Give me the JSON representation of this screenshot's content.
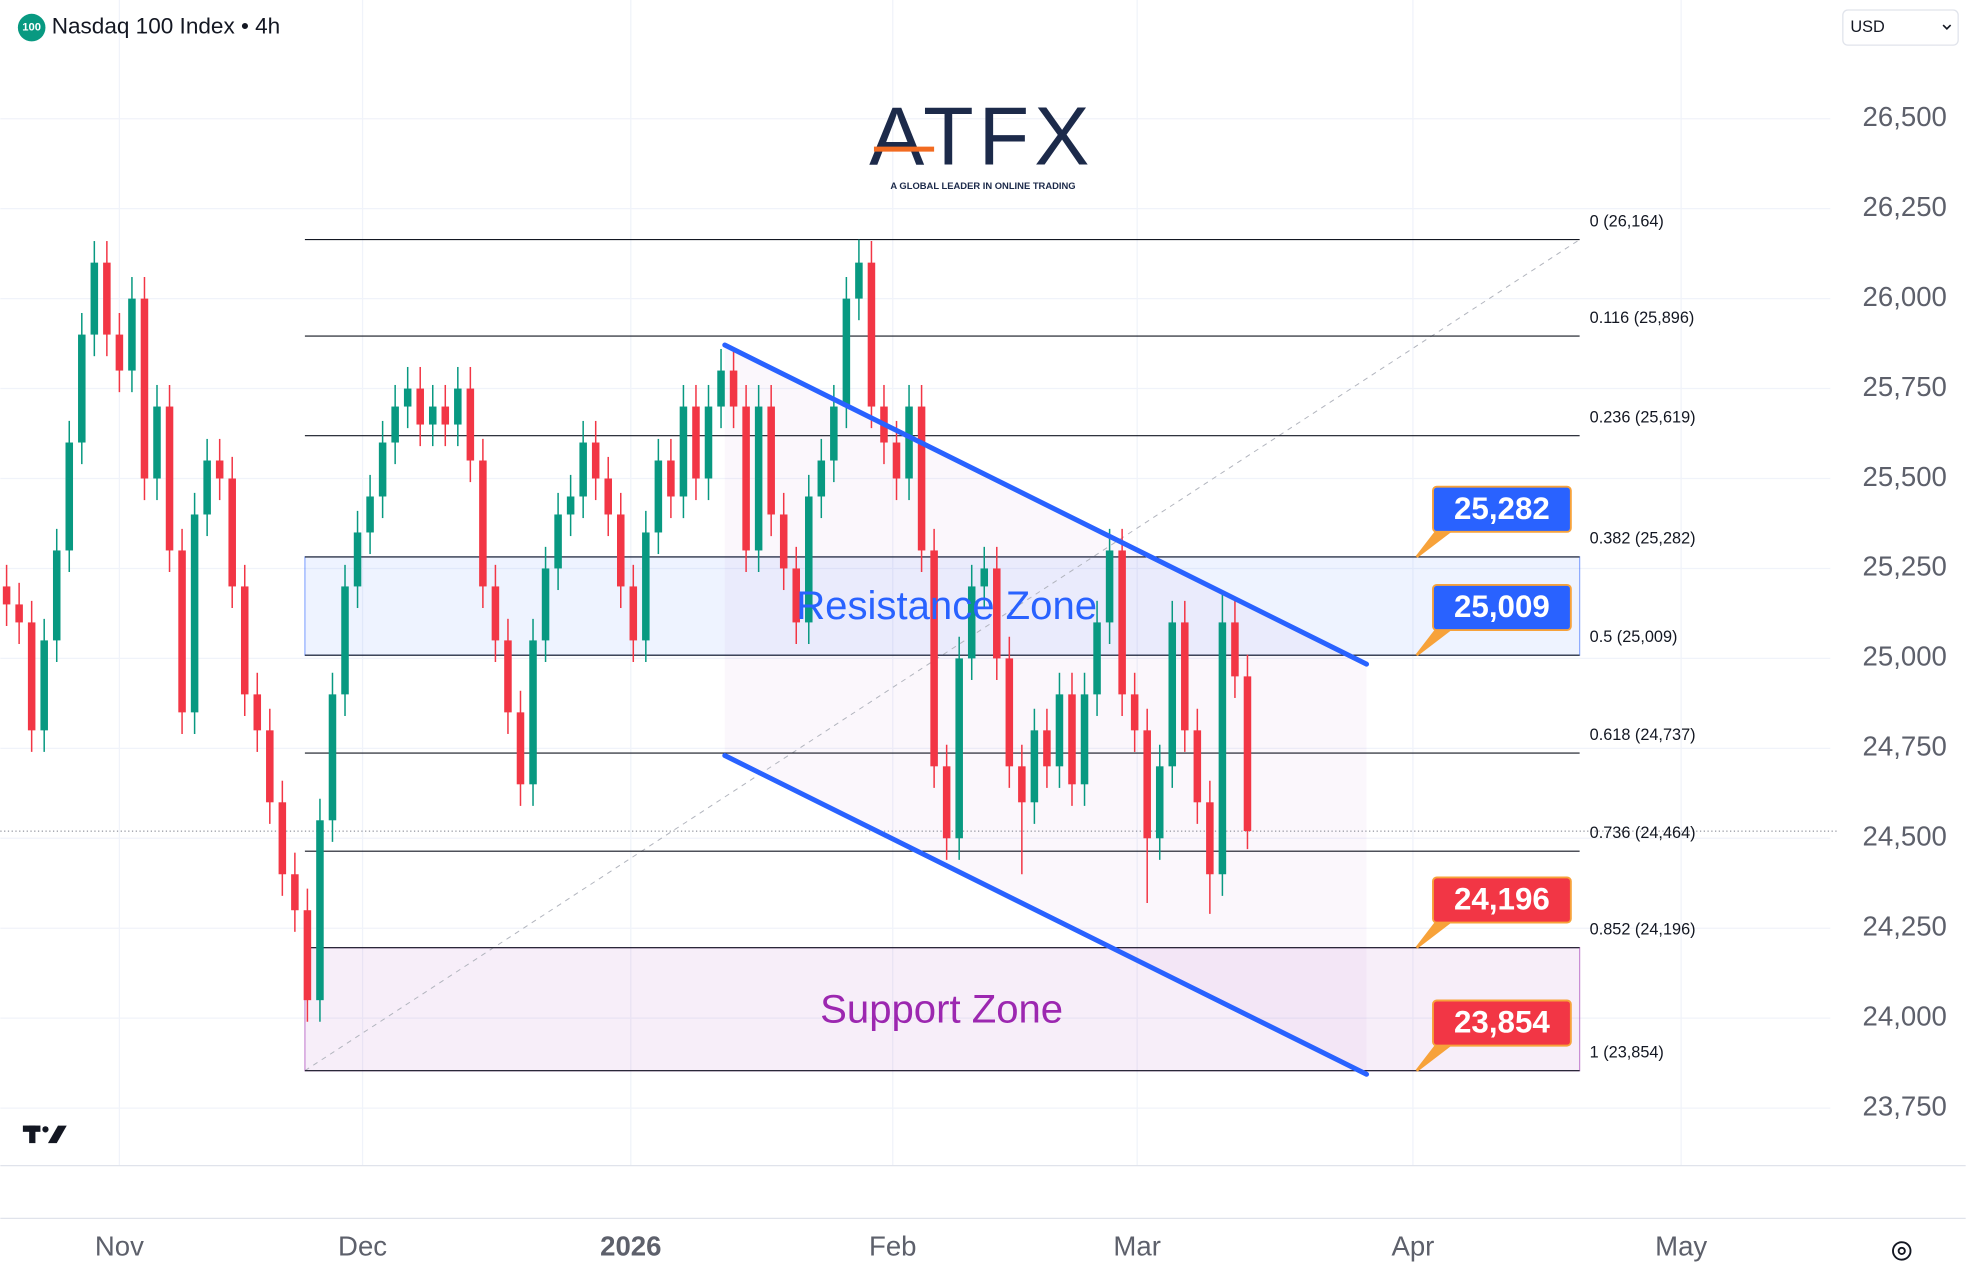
{
  "chart_data": {
    "type": "candlestick",
    "title": "Nasdaq 100 Index • 4h",
    "symbol_badge": "100",
    "currency": "USD",
    "logo": "ATFX",
    "logo_tagline": "A GLOBAL LEADER IN ONLINE TRADING",
    "up_color": "#089981",
    "down_color": "#f23645",
    "xlim": [
      -0.5,
      145.5
    ],
    "xticks": [
      {
        "value": 9,
        "label": "Nov"
      },
      {
        "value": 28.4,
        "label": "Dec"
      },
      {
        "value": 49.8,
        "label": "2026"
      },
      {
        "value": 70.7,
        "label": "Feb"
      },
      {
        "value": 90.2,
        "label": "Mar"
      },
      {
        "value": 112.2,
        "label": "Apr"
      },
      {
        "value": 133.6,
        "label": "May"
      }
    ],
    "ylim": [
      23590,
      26830
    ],
    "yticks": [
      {
        "value": 23750,
        "label": "23,750"
      },
      {
        "value": 24000,
        "label": "24,000"
      },
      {
        "value": 24250,
        "label": "24,250"
      },
      {
        "value": 24500,
        "label": "24,500"
      },
      {
        "value": 24750,
        "label": "24,750"
      },
      {
        "value": 25000,
        "label": "25,000"
      },
      {
        "value": 25250,
        "label": "25,250"
      },
      {
        "value": 25500,
        "label": "25,500"
      },
      {
        "value": 25750,
        "label": "25,750"
      },
      {
        "value": 26000,
        "label": "26,000"
      },
      {
        "value": 26250,
        "label": "26,250"
      },
      {
        "value": 26500,
        "label": "26,500"
      }
    ],
    "open": [
      25200,
      25150,
      25100,
      24800,
      25050,
      25300,
      25600,
      25900,
      26100,
      25900,
      25800,
      26000,
      25500,
      25700,
      25300,
      24850,
      25400,
      25550,
      25500,
      25200,
      24900,
      24800,
      24600,
      24400,
      24300,
      24050,
      24550,
      24900,
      25200,
      25350,
      25450,
      25600,
      25700,
      25750,
      25650,
      25700,
      25650,
      25750,
      25550,
      25200,
      25050,
      24850,
      24650,
      25050,
      25250,
      25400,
      25450,
      25600,
      25500,
      25400,
      25200,
      25050,
      25350,
      25550,
      25450,
      25700,
      25500,
      25700,
      25800,
      25700,
      25300,
      25700,
      25400,
      25250,
      25100,
      25450,
      25550,
      25700,
      26000,
      26100,
      25700,
      25600,
      25500,
      25700,
      25300,
      24700,
      24500,
      25000,
      25200,
      25250,
      25000,
      24700,
      24600,
      24800,
      24700,
      24900,
      24650,
      24900,
      25100,
      25300,
      24900,
      24800,
      24500,
      24700,
      25100,
      24800,
      24600,
      24400,
      25100,
      24950
    ],
    "high": [
      25260,
      25210,
      25160,
      25110,
      25360,
      25660,
      25960,
      26160,
      26160,
      25960,
      26060,
      26060,
      25760,
      25760,
      25360,
      25460,
      25610,
      25610,
      25560,
      25260,
      24960,
      24860,
      24660,
      24460,
      24360,
      24610,
      24960,
      25260,
      25410,
      25510,
      25660,
      25760,
      25810,
      25810,
      25760,
      25760,
      25810,
      25810,
      25610,
      25260,
      25110,
      24910,
      25110,
      25310,
      25460,
      25510,
      25660,
      25660,
      25560,
      25460,
      25260,
      25410,
      25610,
      25610,
      25760,
      25760,
      25760,
      25860,
      25860,
      25760,
      25760,
      25760,
      25460,
      25310,
      25510,
      25610,
      25760,
      26060,
      26164,
      26160,
      25760,
      25660,
      25760,
      25760,
      25360,
      24760,
      25060,
      25260,
      25310,
      25310,
      25060,
      24760,
      24860,
      24860,
      24960,
      24960,
      24960,
      25160,
      25360,
      25360,
      24960,
      24860,
      24760,
      25160,
      25160,
      24860,
      24660,
      25180,
      25160,
      25010
    ],
    "low": [
      25090,
      25040,
      24740,
      24740,
      24990,
      25240,
      25540,
      25840,
      25840,
      25740,
      25740,
      25440,
      25440,
      25240,
      24790,
      24790,
      25340,
      25440,
      25140,
      24840,
      24740,
      24540,
      24340,
      24240,
      23990,
      23990,
      24490,
      24840,
      25140,
      25290,
      25390,
      25540,
      25640,
      25590,
      25590,
      25590,
      25590,
      25490,
      25140,
      24990,
      24790,
      24590,
      24590,
      24990,
      25190,
      25340,
      25390,
      25440,
      25340,
      25140,
      24990,
      24990,
      25290,
      25390,
      25390,
      25440,
      25440,
      25640,
      25640,
      25240,
      25240,
      25340,
      25190,
      25040,
      25040,
      25390,
      25490,
      25640,
      25940,
      25640,
      25540,
      25440,
      25440,
      25240,
      24640,
      24440,
      24440,
      24940,
      25140,
      24940,
      24640,
      24400,
      24540,
      24640,
      24640,
      24590,
      24590,
      24840,
      25040,
      24840,
      24740,
      24320,
      24440,
      24640,
      24740,
      24540,
      24290,
      24340,
      24890,
      24470
    ],
    "close": [
      25150,
      25100,
      24800,
      25050,
      25300,
      25600,
      25900,
      26100,
      25900,
      25800,
      26000,
      25500,
      25700,
      25300,
      24850,
      25400,
      25550,
      25500,
      25200,
      24900,
      24800,
      24600,
      24400,
      24300,
      24050,
      24550,
      24900,
      25200,
      25350,
      25450,
      25600,
      25700,
      25750,
      25650,
      25700,
      25650,
      25750,
      25550,
      25200,
      25050,
      24850,
      24650,
      25050,
      25250,
      25400,
      25450,
      25600,
      25500,
      25400,
      25200,
      25050,
      25350,
      25550,
      25450,
      25700,
      25500,
      25700,
      25800,
      25700,
      25300,
      25700,
      25400,
      25250,
      25100,
      25450,
      25550,
      25700,
      26000,
      26100,
      25700,
      25600,
      25500,
      25700,
      25300,
      24700,
      24500,
      25000,
      25200,
      25250,
      25000,
      24700,
      24600,
      24800,
      24700,
      24900,
      24650,
      24900,
      25100,
      25300,
      24900,
      24800,
      24500,
      24700,
      25100,
      24800,
      24600,
      24400,
      25100,
      24950,
      24520
    ],
    "fib_levels": [
      {
        "value": 26164,
        "label": "0 (26,164)"
      },
      {
        "value": 25896,
        "label": "0.116 (25,896)"
      },
      {
        "value": 25619,
        "label": "0.236 (25,619)"
      },
      {
        "value": 25282,
        "label": "0.382 (25,282)"
      },
      {
        "value": 25009,
        "label": "0.5 (25,009)"
      },
      {
        "value": 24737,
        "label": "0.618 (24,737)"
      },
      {
        "value": 24464,
        "label": "0.736 (24,464)"
      },
      {
        "value": 24196,
        "label": "0.852 (24,196)"
      },
      {
        "value": 23854,
        "label": "1 (23,854)"
      }
    ],
    "zones": [
      {
        "label": "Resistance Zone",
        "low": 25009,
        "high": 25282,
        "color": "#2962ff"
      },
      {
        "label": "Support Zone",
        "low": 23854,
        "high": 24196,
        "color": "#9c27b0"
      }
    ],
    "channel": {
      "x": [
        57.3,
        108.5
      ],
      "upper": [
        25871,
        24984
      ],
      "lower": [
        24730,
        23844
      ],
      "color": "#2962ff"
    },
    "callouts": [
      {
        "value": 25282,
        "label": "25,282",
        "color": "#2962ff"
      },
      {
        "value": 25009,
        "label": "25,009",
        "color": "#2962ff"
      },
      {
        "value": 24196,
        "label": "24,196",
        "color": "#f23645"
      },
      {
        "value": 23854,
        "label": "23,854",
        "color": "#f23645"
      }
    ]
  }
}
